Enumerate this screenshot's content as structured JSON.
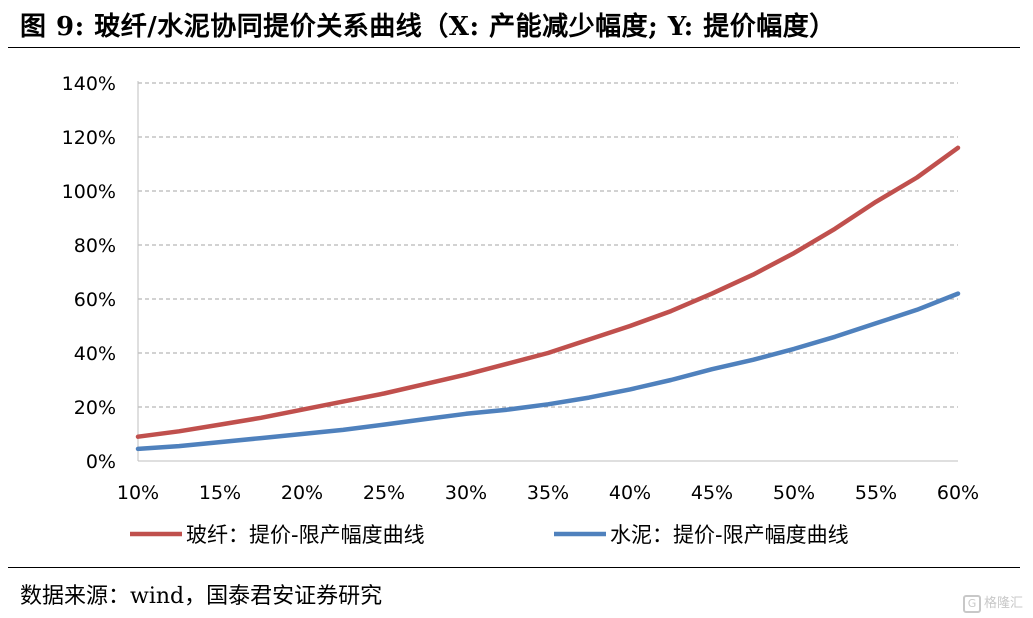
{
  "header": {
    "title": "图 9: 玻纤/水泥协同提价关系曲线（X: 产能减少幅度; Y: 提价幅度）"
  },
  "footer": {
    "source": "数据来源：wind，国泰君安证券研究",
    "watermark": "格隆汇",
    "watermark_glyph": "G"
  },
  "colors": {
    "glass_fiber": "#C0504D",
    "cement": "#4F81BD",
    "grid": "#a6a6a6",
    "axis": "#bfbfbf"
  },
  "chart_data": {
    "type": "line",
    "title": "玻纤/水泥协同提价关系曲线（X: 产能减少幅度; Y: 提价幅度）",
    "xlabel": "",
    "ylabel": "",
    "x_ticks": [
      "10%",
      "15%",
      "20%",
      "25%",
      "30%",
      "35%",
      "40%",
      "45%",
      "50%",
      "55%",
      "60%"
    ],
    "y_ticks": [
      "0%",
      "20%",
      "40%",
      "60%",
      "80%",
      "100%",
      "120%",
      "140%"
    ],
    "xlim": [
      10,
      60
    ],
    "ylim": [
      0,
      140
    ],
    "grid": true,
    "legend_position": "bottom",
    "x": [
      10,
      12.5,
      15,
      17.5,
      20,
      22.5,
      25,
      27.5,
      30,
      32.5,
      35,
      37.5,
      40,
      42.5,
      45,
      47.5,
      50,
      52.5,
      55,
      57.5,
      60
    ],
    "series": [
      {
        "name": "玻纤：提价-限产幅度曲线",
        "color": "#C0504D",
        "values": [
          9,
          11,
          13.5,
          16,
          19,
          22,
          25,
          28.5,
          32,
          36,
          40,
          45,
          50,
          55.5,
          62,
          69,
          77,
          86,
          96,
          105,
          116
        ]
      },
      {
        "name": "水泥：提价-限产幅度曲线",
        "color": "#4F81BD",
        "values": [
          4.5,
          5.5,
          7,
          8.5,
          10,
          11.5,
          13.5,
          15.5,
          17.5,
          19,
          21,
          23.5,
          26.5,
          30,
          34,
          37.5,
          41.5,
          46,
          51,
          56,
          62
        ]
      }
    ]
  }
}
